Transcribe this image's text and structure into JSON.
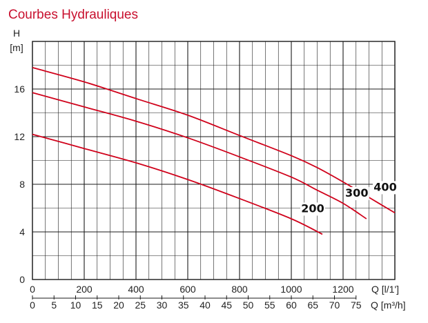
{
  "chart_data": {
    "type": "line",
    "title": "Courbes Hydrauliques",
    "ylabel_top": "H",
    "ylabel_unit": "[m]",
    "xlabel_primary": "Q [l/1']",
    "xlabel_secondary": "Q [m³/h]",
    "xlim": [
      0,
      1400
    ],
    "ylim": [
      0,
      20
    ],
    "y_ticks": [
      0,
      4,
      8,
      12,
      16
    ],
    "x_ticks_primary": [
      0,
      200,
      400,
      600,
      800,
      1000,
      1200
    ],
    "x_ticks_secondary": [
      0,
      5,
      10,
      15,
      20,
      25,
      30,
      35,
      40,
      45,
      50,
      55,
      60,
      65,
      70,
      75
    ],
    "grid": true,
    "colors": {
      "curves": "#d0021b",
      "grid": "#1a1a1a",
      "title": "#c8102e"
    },
    "series": [
      {
        "name": "400",
        "x": [
          0,
          200,
          400,
          600,
          800,
          1000,
          1100,
          1200,
          1300,
          1400
        ],
        "y": [
          17.8,
          16.6,
          15.2,
          13.8,
          12.1,
          10.4,
          9.4,
          8.2,
          6.9,
          5.6
        ]
      },
      {
        "name": "300",
        "x": [
          0,
          200,
          400,
          600,
          800,
          1000,
          1100,
          1200,
          1290
        ],
        "y": [
          15.7,
          14.5,
          13.3,
          11.9,
          10.3,
          8.6,
          7.5,
          6.4,
          5.1
        ]
      },
      {
        "name": "200",
        "x": [
          0,
          200,
          400,
          600,
          800,
          1000,
          1120
        ],
        "y": [
          12.2,
          11.0,
          9.8,
          8.4,
          6.8,
          5.1,
          3.8
        ]
      }
    ]
  }
}
